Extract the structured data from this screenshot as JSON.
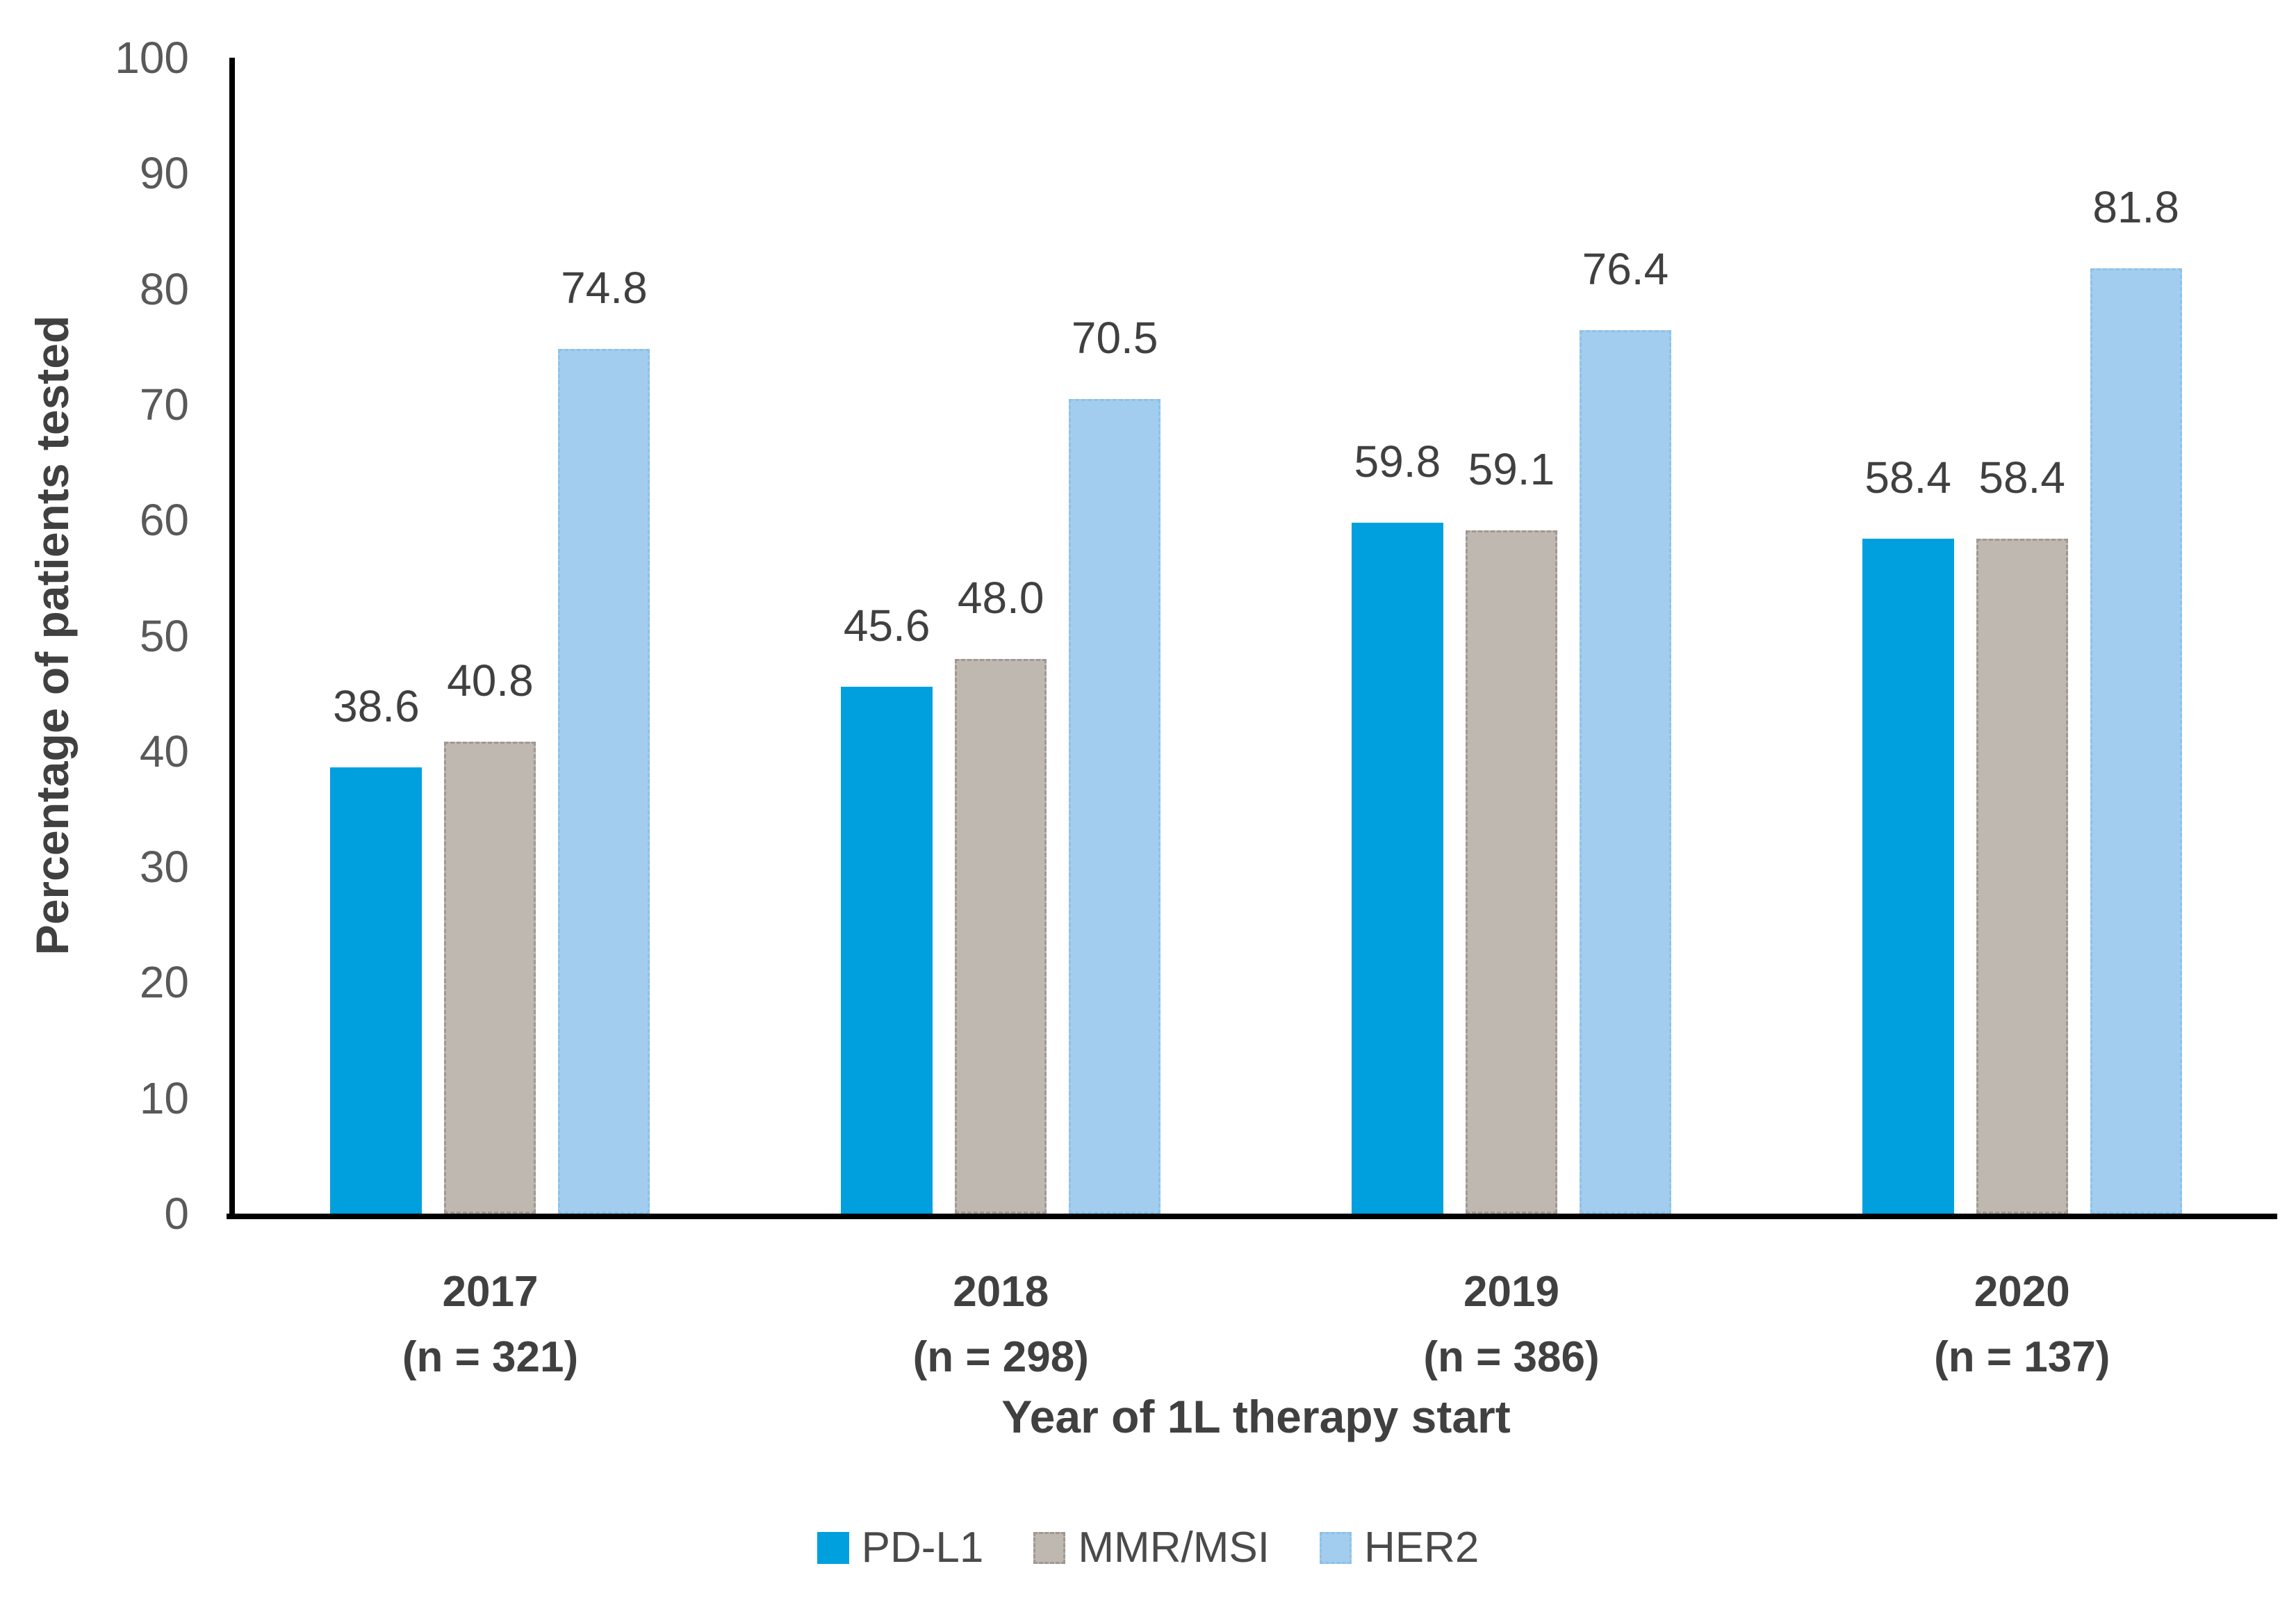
{
  "chart_data": {
    "type": "bar",
    "title": "",
    "xlabel": "Year of 1L therapy start",
    "ylabel": "Percentage of patients tested",
    "ylim": [
      0,
      100
    ],
    "yticks": [
      0,
      10,
      20,
      30,
      40,
      50,
      60,
      70,
      80,
      90,
      100
    ],
    "grid": false,
    "legend_position": "bottom-center",
    "value_label_format": "one-decimal",
    "categories": [
      {
        "year": "2017",
        "n": "(n = 321)"
      },
      {
        "year": "2018",
        "n": "(n = 298)"
      },
      {
        "year": "2019",
        "n": "(n = 386)"
      },
      {
        "year": "2020",
        "n": "(n = 137)"
      }
    ],
    "series": [
      {
        "name": "PD-L1",
        "color": "#00A0DE",
        "border": "",
        "values": [
          38.6,
          45.6,
          59.8,
          58.4
        ]
      },
      {
        "name": "MMR/MSI",
        "color": "#BFB8B0",
        "border": "#A09890",
        "values": [
          40.8,
          48.0,
          59.1,
          58.4
        ]
      },
      {
        "name": "HER2",
        "color": "#A3CDEE",
        "border": "#8CC2EA",
        "values": [
          74.8,
          70.5,
          76.4,
          81.8
        ]
      }
    ],
    "value_labels": [
      [
        "38.6",
        "40.8",
        "74.8"
      ],
      [
        "45.6",
        "48.0",
        "70.5"
      ],
      [
        "59.8",
        "59.1",
        "76.4"
      ],
      [
        "58.4",
        "58.4",
        "81.8"
      ]
    ]
  },
  "colors": {
    "axis_line": "#000000",
    "tick_text": "#595959",
    "label_text": "#404040",
    "background": "#ffffff"
  }
}
